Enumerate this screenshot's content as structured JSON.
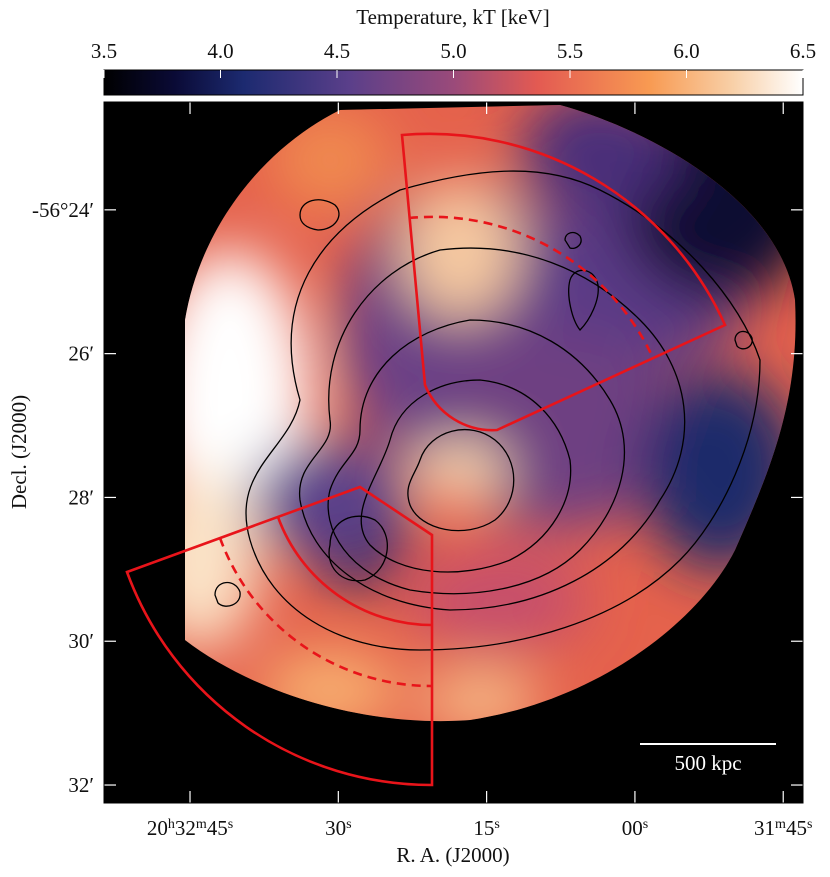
{
  "chart_data": {
    "type": "map",
    "colorbar": {
      "label": "Temperature, kT [keV]",
      "lim": [
        3.5,
        6.5
      ],
      "ticks": [
        3.5,
        {
          "value": 4,
          "label": "4.0"
        },
        4.5,
        {
          "value": 5,
          "label": "5.0"
        },
        5.5,
        {
          "value": 6,
          "label": "6.0"
        },
        6.5
      ]
    },
    "xlabel": "R. A. (J2000)",
    "ylabel": "Decl. (J2000)",
    "xlim": [
      53.7,
      -17
    ],
    "xticks": [
      {
        "value": 45,
        "label": "20h32m45s"
      },
      {
        "value": 30,
        "label": "30s"
      },
      {
        "value": 15,
        "label": "15s"
      },
      {
        "value": 0,
        "label": "00s"
      },
      {
        "value": -15,
        "label": "31m45s"
      }
    ],
    "ylim": [
      32.25,
      22.5
    ],
    "yticks": [
      {
        "value": 24,
        "label": "-56°24′"
      },
      {
        "value": 26,
        "label": "26′"
      },
      {
        "value": 28,
        "label": "28′"
      },
      {
        "value": 30,
        "label": "30′"
      },
      {
        "value": 32,
        "label": "32′"
      }
    ],
    "scale_bar_label": "500 kpc"
  }
}
